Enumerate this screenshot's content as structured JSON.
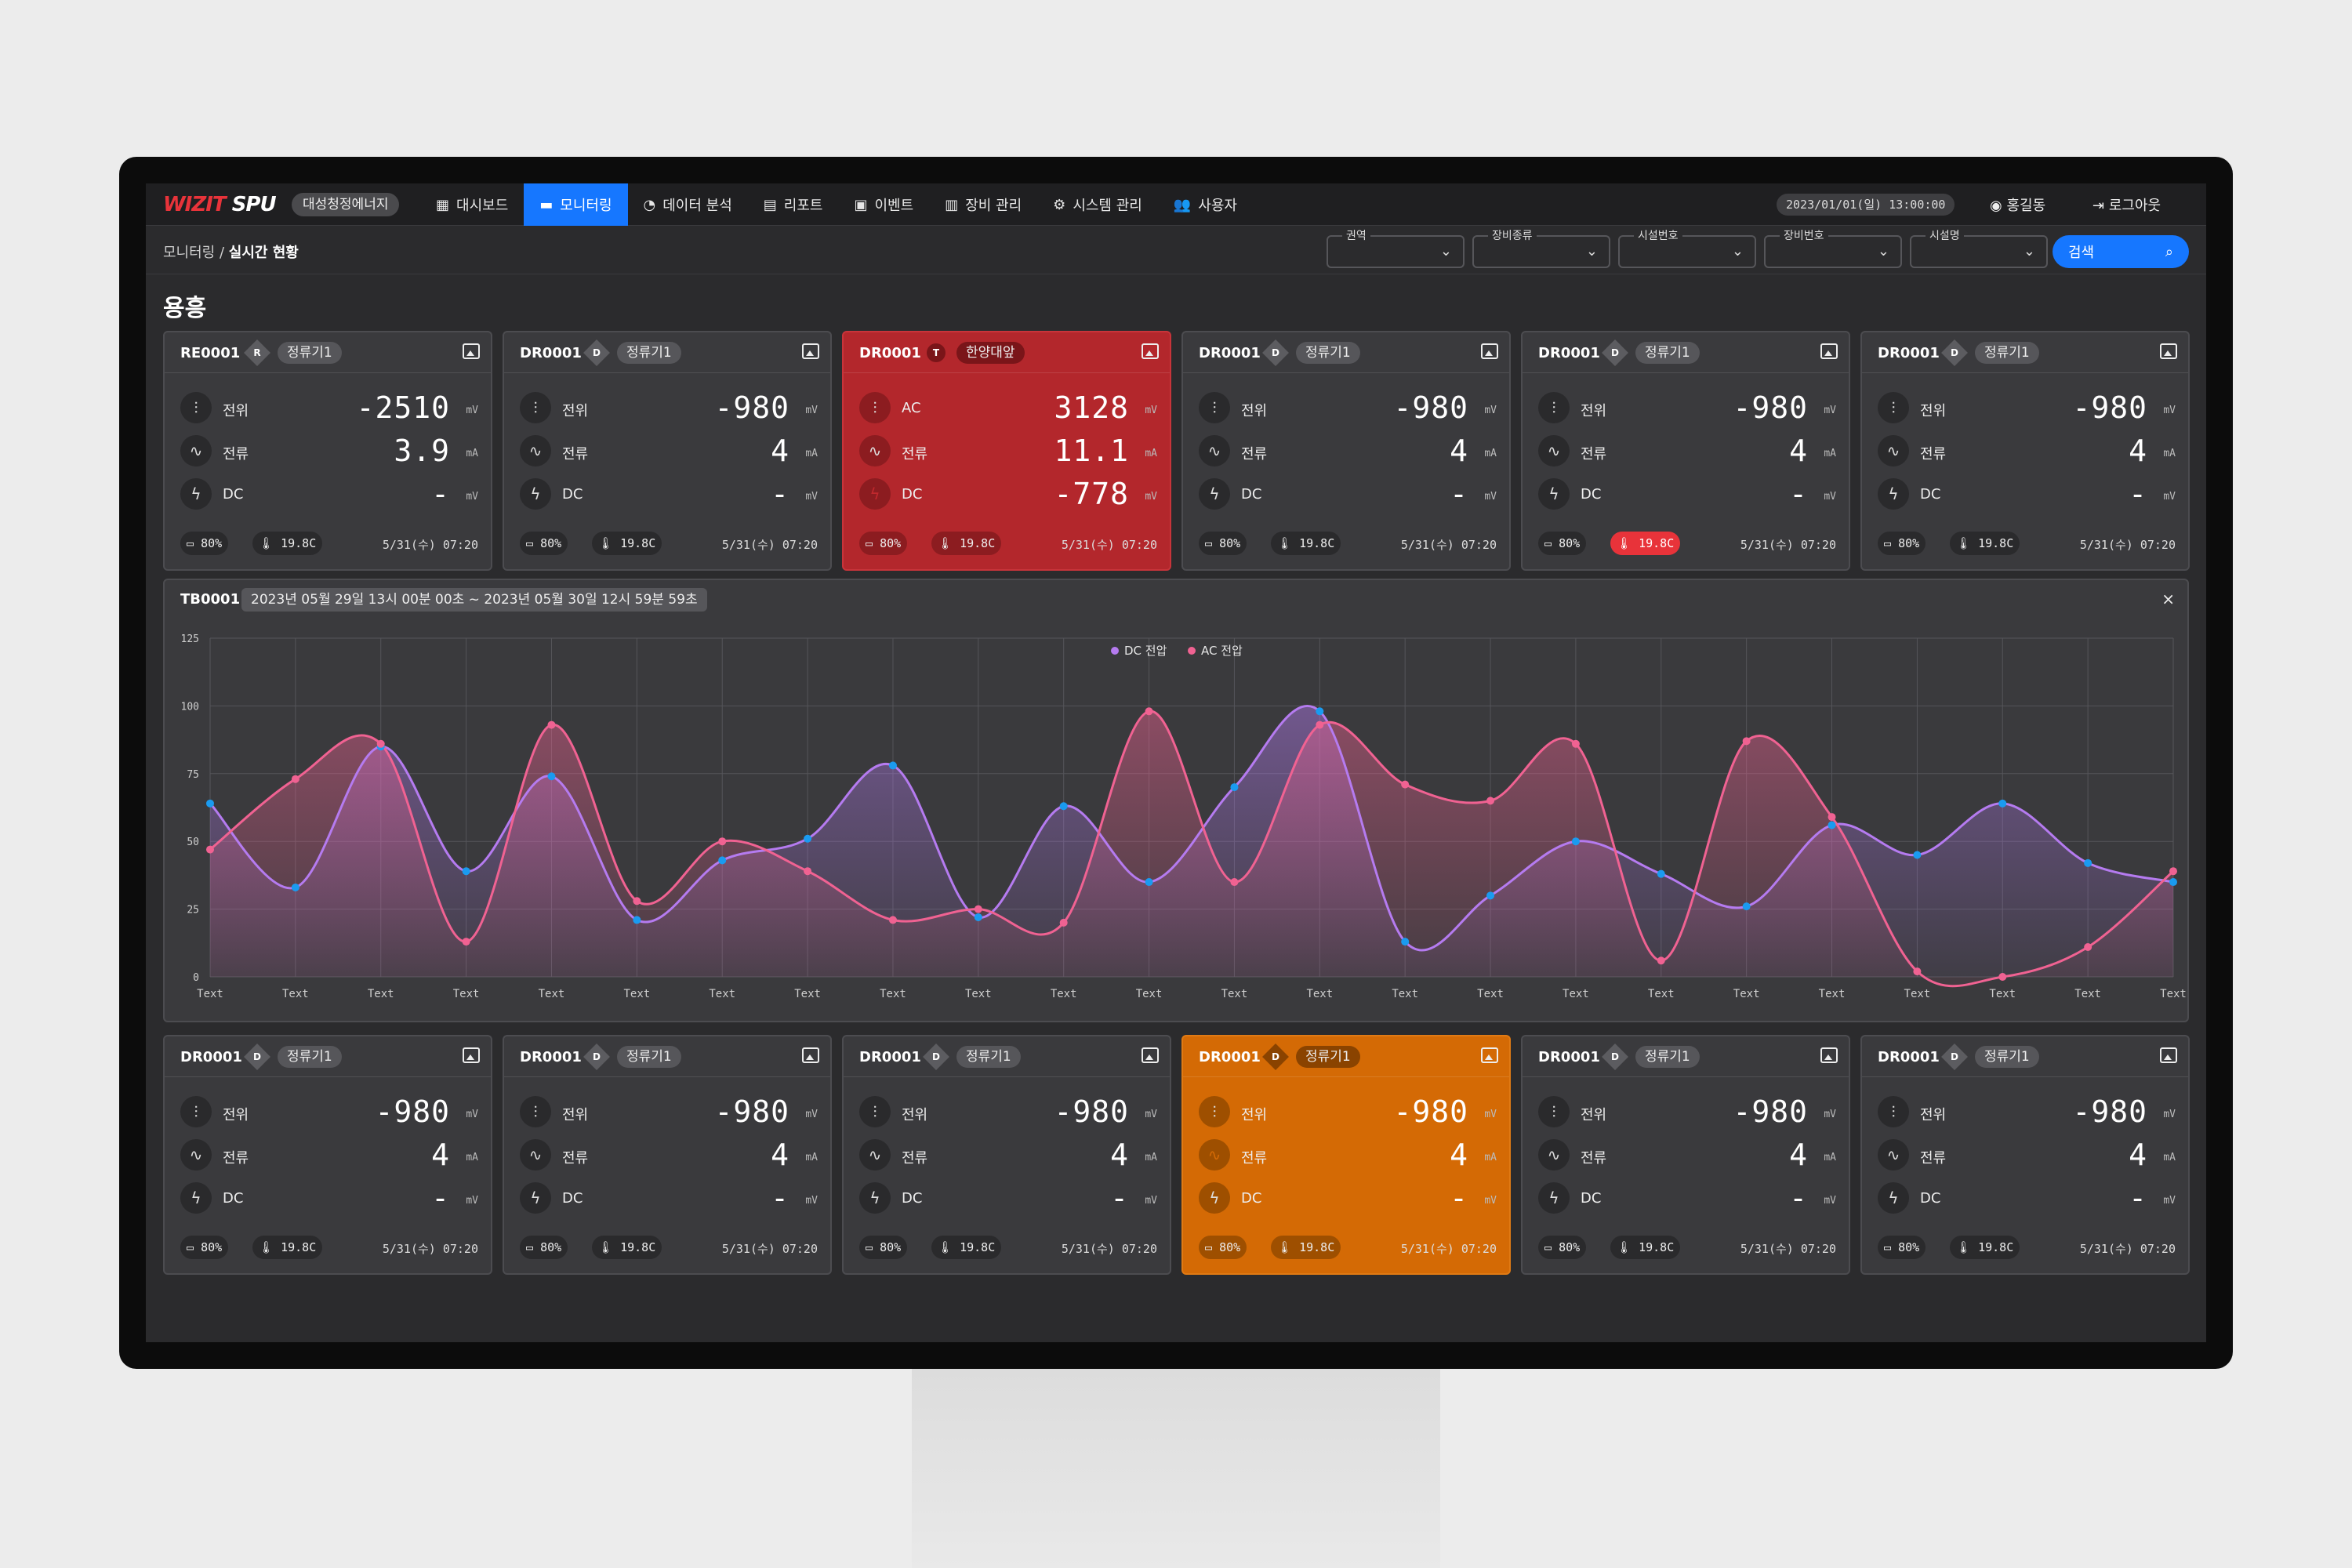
{
  "app": {
    "logo_mark": "WIZIT",
    "logo_text": "SPU",
    "company": "대성청정에너지"
  },
  "nav": [
    {
      "icon": "grid-icon",
      "glyph": "▦",
      "label": "대시보드",
      "active": false
    },
    {
      "icon": "monitor-icon",
      "glyph": "▬",
      "label": "모니터링",
      "active": true
    },
    {
      "icon": "pie-chart-icon",
      "glyph": "◔",
      "label": "데이터 분석",
      "active": false
    },
    {
      "icon": "report-icon",
      "glyph": "▤",
      "label": "리포트",
      "active": false
    },
    {
      "icon": "calendar-icon",
      "glyph": "▣",
      "label": "이벤트",
      "active": false
    },
    {
      "icon": "building-icon",
      "glyph": "▥",
      "label": "장비 관리",
      "active": false
    },
    {
      "icon": "gear-icon",
      "glyph": "⚙",
      "label": "시스템 관리",
      "active": false
    },
    {
      "icon": "users-icon",
      "glyph": "👥",
      "label": "사용자",
      "active": false
    }
  ],
  "header": {
    "datetime": "2023/01/01(일) 13:00:00",
    "user": "홍길동",
    "logout": "로그아웃"
  },
  "breadcrumb": {
    "parent": "모니터링",
    "separator": "/",
    "current": "실시간 현황"
  },
  "filters": [
    {
      "label": "권역",
      "value": ""
    },
    {
      "label": "장비종류",
      "value": ""
    },
    {
      "label": "시설번호",
      "value": ""
    },
    {
      "label": "장비번호",
      "value": ""
    },
    {
      "label": "시설명",
      "value": ""
    }
  ],
  "search": {
    "label": "검색"
  },
  "section_title": "용흥",
  "cards_top": [
    {
      "code": "RE0001",
      "badge": "R",
      "tag": "정류기1",
      "state": "normal",
      "rows": [
        {
          "label": "전위",
          "value": "-2510",
          "unit": "mV"
        },
        {
          "label": "전류",
          "value": "3.9",
          "unit": "mA"
        },
        {
          "label": "DC",
          "value": "-",
          "unit": "mV"
        }
      ],
      "highlight": -1,
      "battery": "80%",
      "temp": "19.8C",
      "temp_alert": false,
      "time": "5/31(수) 07:20"
    },
    {
      "code": "DR0001",
      "badge": "D",
      "tag": "정류기1",
      "state": "normal",
      "rows": [
        {
          "label": "전위",
          "value": "-980",
          "unit": "mV"
        },
        {
          "label": "전류",
          "value": "4",
          "unit": "mA"
        },
        {
          "label": "DC",
          "value": "-",
          "unit": "mV"
        }
      ],
      "highlight": -1,
      "battery": "80%",
      "temp": "19.8C",
      "temp_alert": false,
      "time": "5/31(수) 07:20"
    },
    {
      "code": "DR0001",
      "badge": "T",
      "tag": "한양대앞",
      "state": "red",
      "rows": [
        {
          "label": "AC",
          "value": "3128",
          "unit": "mV"
        },
        {
          "label": "전류",
          "value": "11.1",
          "unit": "mA"
        },
        {
          "label": "DC",
          "value": "-778",
          "unit": "mV"
        }
      ],
      "highlight": 2,
      "battery": "80%",
      "temp": "19.8C",
      "temp_alert": false,
      "time": "5/31(수) 07:20"
    },
    {
      "code": "DR0001",
      "badge": "D",
      "tag": "정류기1",
      "state": "normal",
      "rows": [
        {
          "label": "전위",
          "value": "-980",
          "unit": "mV"
        },
        {
          "label": "전류",
          "value": "4",
          "unit": "mA"
        },
        {
          "label": "DC",
          "value": "-",
          "unit": "mV"
        }
      ],
      "highlight": -1,
      "battery": "80%",
      "temp": "19.8C",
      "temp_alert": false,
      "time": "5/31(수) 07:20"
    },
    {
      "code": "DR0001",
      "badge": "D",
      "tag": "정류기1",
      "state": "normal",
      "rows": [
        {
          "label": "전위",
          "value": "-980",
          "unit": "mV"
        },
        {
          "label": "전류",
          "value": "4",
          "unit": "mA"
        },
        {
          "label": "DC",
          "value": "-",
          "unit": "mV"
        }
      ],
      "highlight": -1,
      "battery": "80%",
      "temp": "19.8C",
      "temp_alert": true,
      "time": "5/31(수) 07:20"
    },
    {
      "code": "DR0001",
      "badge": "D",
      "tag": "정류기1",
      "state": "normal",
      "rows": [
        {
          "label": "전위",
          "value": "-980",
          "unit": "mV"
        },
        {
          "label": "전류",
          "value": "4",
          "unit": "mA"
        },
        {
          "label": "DC",
          "value": "-",
          "unit": "mV"
        }
      ],
      "highlight": -1,
      "battery": "80%",
      "temp": "19.8C",
      "temp_alert": false,
      "time": "5/31(수) 07:20"
    }
  ],
  "cards_bottom": [
    {
      "code": "DR0001",
      "badge": "D",
      "tag": "정류기1",
      "state": "normal",
      "rows": [
        {
          "label": "전위",
          "value": "-980",
          "unit": "mV"
        },
        {
          "label": "전류",
          "value": "4",
          "unit": "mA"
        },
        {
          "label": "DC",
          "value": "-",
          "unit": "mV"
        }
      ],
      "highlight": -1,
      "battery": "80%",
      "temp": "19.8C",
      "temp_alert": false,
      "time": "5/31(수) 07:20"
    },
    {
      "code": "DR0001",
      "badge": "D",
      "tag": "정류기1",
      "state": "normal",
      "rows": [
        {
          "label": "전위",
          "value": "-980",
          "unit": "mV"
        },
        {
          "label": "전류",
          "value": "4",
          "unit": "mA"
        },
        {
          "label": "DC",
          "value": "-",
          "unit": "mV"
        }
      ],
      "highlight": -1,
      "battery": "80%",
      "temp": "19.8C",
      "temp_alert": false,
      "time": "5/31(수) 07:20"
    },
    {
      "code": "DR0001",
      "badge": "D",
      "tag": "정류기1",
      "state": "normal",
      "rows": [
        {
          "label": "전위",
          "value": "-980",
          "unit": "mV"
        },
        {
          "label": "전류",
          "value": "4",
          "unit": "mA"
        },
        {
          "label": "DC",
          "value": "-",
          "unit": "mV"
        }
      ],
      "highlight": -1,
      "battery": "80%",
      "temp": "19.8C",
      "temp_alert": false,
      "time": "5/31(수) 07:20"
    },
    {
      "code": "DR0001",
      "badge": "D",
      "tag": "정류기1",
      "state": "orange",
      "rows": [
        {
          "label": "전위",
          "value": "-980",
          "unit": "mV"
        },
        {
          "label": "전류",
          "value": "4",
          "unit": "mA"
        },
        {
          "label": "DC",
          "value": "-",
          "unit": "mV"
        }
      ],
      "highlight": 1,
      "battery": "80%",
      "temp": "19.8C",
      "temp_alert": false,
      "time": "5/31(수) 07:20"
    },
    {
      "code": "DR0001",
      "badge": "D",
      "tag": "정류기1",
      "state": "normal",
      "rows": [
        {
          "label": "전위",
          "value": "-980",
          "unit": "mV"
        },
        {
          "label": "전류",
          "value": "4",
          "unit": "mA"
        },
        {
          "label": "DC",
          "value": "-",
          "unit": "mV"
        }
      ],
      "highlight": -1,
      "battery": "80%",
      "temp": "19.8C",
      "temp_alert": false,
      "time": "5/31(수) 07:20"
    },
    {
      "code": "DR0001",
      "badge": "D",
      "tag": "정류기1",
      "state": "normal",
      "rows": [
        {
          "label": "전위",
          "value": "-980",
          "unit": "mV"
        },
        {
          "label": "전류",
          "value": "4",
          "unit": "mA"
        },
        {
          "label": "DC",
          "value": "-",
          "unit": "mV"
        }
      ],
      "highlight": -1,
      "battery": "80%",
      "temp": "19.8C",
      "temp_alert": false,
      "time": "5/31(수) 07:20"
    }
  ],
  "chart_panel": {
    "code": "TB0001",
    "range": "2023년 05월 29일 13시 00분 00초 ~ 2023년 05월 30일 12시 59분 59초",
    "close": "×"
  },
  "chart_data": {
    "type": "area",
    "categories": [
      "Text",
      "Text",
      "Text",
      "Text",
      "Text",
      "Text",
      "Text",
      "Text",
      "Text",
      "Text",
      "Text",
      "Text",
      "Text",
      "Text",
      "Text",
      "Text",
      "Text",
      "Text",
      "Text",
      "Text",
      "Text",
      "Text",
      "Text",
      "Text"
    ],
    "yticks": [
      0,
      25,
      50,
      75,
      100,
      125
    ],
    "ylim": [
      0,
      125
    ],
    "legend_position": "top-center",
    "series": [
      {
        "name": "DC 전압",
        "color": "#b57bf0",
        "marker": "#1a9bf0",
        "values": [
          64,
          33,
          85,
          39,
          74,
          21,
          43,
          51,
          78,
          22,
          63,
          35,
          70,
          98,
          13,
          30,
          50,
          38,
          26,
          56,
          45,
          64,
          42,
          35
        ]
      },
      {
        "name": "AC 전압",
        "color": "#f06292",
        "marker": "#f06292",
        "values": [
          47,
          73,
          86,
          13,
          93,
          28,
          50,
          39,
          21,
          25,
          20,
          98,
          35,
          93,
          71,
          65,
          86,
          6,
          87,
          59,
          2,
          0,
          11,
          39
        ]
      }
    ]
  }
}
